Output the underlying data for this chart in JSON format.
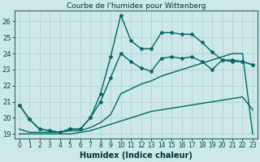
{
  "title": "Courbe de l'humidex pour Wittenberg",
  "xlabel": "Humidex (Indice chaleur)",
  "background_color": "#cce8e8",
  "grid_color": "#b0cccc",
  "line_color": "#006666",
  "xlim": [
    -0.5,
    23.5
  ],
  "ylim": [
    18.7,
    26.7
  ],
  "xticks": [
    0,
    1,
    2,
    3,
    4,
    5,
    6,
    7,
    8,
    9,
    10,
    11,
    12,
    13,
    14,
    15,
    16,
    17,
    18,
    19,
    20,
    21,
    22,
    23
  ],
  "yticks": [
    19,
    20,
    21,
    22,
    23,
    24,
    25,
    26
  ],
  "s1_x": [
    0,
    1,
    2,
    3,
    4,
    5,
    6,
    7,
    8,
    9,
    10,
    11,
    12,
    13,
    14,
    15,
    16,
    17,
    18,
    19,
    20,
    21,
    22,
    23
  ],
  "s1_y": [
    20.8,
    19.9,
    19.3,
    19.2,
    19.1,
    19.3,
    19.3,
    20.0,
    21.5,
    23.8,
    26.4,
    24.8,
    24.3,
    24.3,
    25.3,
    25.3,
    25.2,
    25.2,
    24.7,
    24.1,
    23.6,
    23.6,
    23.5,
    23.3
  ],
  "s2_x": [
    0,
    1,
    2,
    3,
    4,
    5,
    6,
    7,
    8,
    9,
    10,
    11,
    12,
    13,
    14,
    15,
    16,
    17,
    18,
    19,
    20,
    21,
    22,
    23
  ],
  "s2_y": [
    20.8,
    19.9,
    19.3,
    19.2,
    19.1,
    19.3,
    19.3,
    20.0,
    21.0,
    22.5,
    24.0,
    23.5,
    23.1,
    22.9,
    23.7,
    23.8,
    23.7,
    23.8,
    23.5,
    23.0,
    23.6,
    23.5,
    23.5,
    23.3
  ],
  "s3_x": [
    0,
    1,
    2,
    3,
    4,
    5,
    6,
    7,
    8,
    9,
    10,
    11,
    12,
    13,
    14,
    15,
    16,
    17,
    18,
    19,
    20,
    21,
    22,
    23
  ],
  "s3_y": [
    19.0,
    19.0,
    19.0,
    19.0,
    19.0,
    19.0,
    19.1,
    19.2,
    19.4,
    19.6,
    19.8,
    20.0,
    20.2,
    20.4,
    20.5,
    20.6,
    20.7,
    20.8,
    20.9,
    21.0,
    21.1,
    21.2,
    21.3,
    20.5
  ],
  "s4_x": [
    0,
    1,
    2,
    3,
    4,
    5,
    6,
    7,
    8,
    9,
    10,
    11,
    12,
    13,
    14,
    15,
    16,
    17,
    18,
    19,
    20,
    21,
    22,
    23
  ],
  "s4_y": [
    19.3,
    19.1,
    19.1,
    19.1,
    19.1,
    19.2,
    19.2,
    19.4,
    19.7,
    20.2,
    21.5,
    21.8,
    22.1,
    22.3,
    22.6,
    22.8,
    23.0,
    23.2,
    23.4,
    23.6,
    23.8,
    24.0,
    24.0,
    19.0
  ],
  "marker": "*",
  "marker_size": 3,
  "linewidth": 1.0
}
